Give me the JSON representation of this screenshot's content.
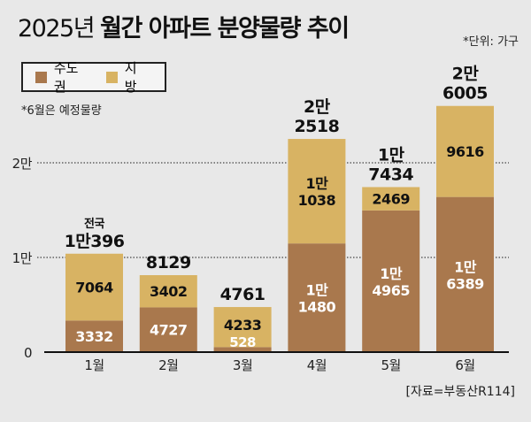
{
  "title_plain": "2025년",
  "title_bold": "월간 아파트 분양물량 추이",
  "unit": "*단위: 가구",
  "note": "*6월은 예정물량",
  "source": "[자료=부동산R114]",
  "colors": {
    "capital": "#a9784d",
    "regional": "#d8b363",
    "background": "#e8e8e8"
  },
  "chart_data": {
    "type": "bar",
    "stacked": true,
    "categories": [
      "1월",
      "2월",
      "3월",
      "4월",
      "5월",
      "6월"
    ],
    "series": [
      {
        "name": "수도권",
        "values": [
          3332,
          4727,
          528,
          11480,
          14965,
          16389
        ],
        "labels": [
          "3332",
          "4727",
          "528",
          "1만\n1480",
          "1만\n4965",
          "1만\n6389"
        ]
      },
      {
        "name": "지방",
        "values": [
          7064,
          3402,
          4233,
          11038,
          2469,
          9616
        ],
        "labels": [
          "7064",
          "3402",
          "4233",
          "1만\n1038",
          "2469",
          "9616"
        ]
      }
    ],
    "totals": [
      10396,
      8129,
      4761,
      22518,
      17434,
      26005
    ],
    "total_labels": [
      "전국\n1만396",
      "8129",
      "4761",
      "2만\n2518",
      "1만\n7434",
      "2만\n6005"
    ],
    "y_ticks": [
      {
        "value": 0,
        "label": "0"
      },
      {
        "value": 10000,
        "label": "1만"
      },
      {
        "value": 20000,
        "label": "2만"
      }
    ],
    "ylim": [
      0,
      27000
    ],
    "grid": "dotted horizontal",
    "legend": "top-left"
  }
}
